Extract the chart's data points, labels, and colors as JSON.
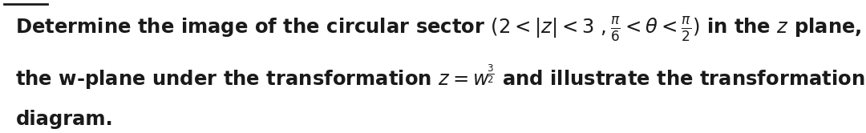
{
  "line1": "Determine the image of the circular sector (2 < |z| < 3 ,\\(\\frac{\\pi}{6}\\) < \\(\\theta\\) < \\(\\frac{\\pi}{2}\\)) in the z plane, on",
  "line2": "the w-plane under the transformation z = w\\(^{\\frac{3}{2}}\\) and illustrate the transformation on a",
  "line3": "diagram.",
  "font_size": 17.5,
  "text_color": "#1a1a1a",
  "bg_color": "#ffffff",
  "fig_width": 10.8,
  "fig_height": 1.66,
  "dpi": 100
}
